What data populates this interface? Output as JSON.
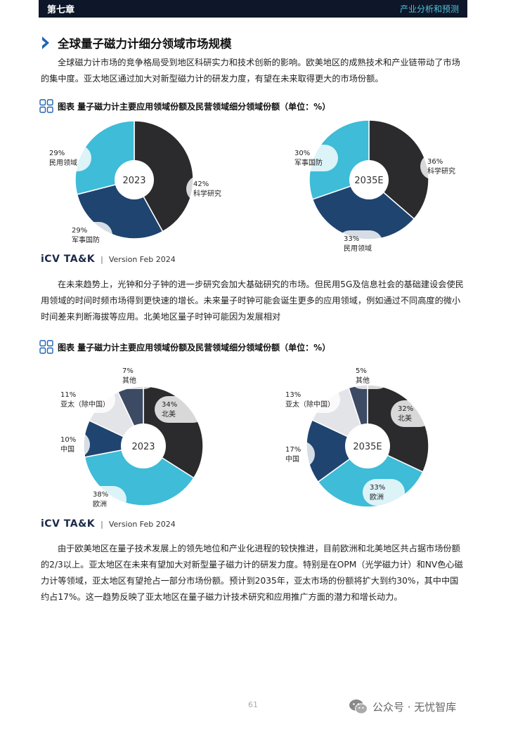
{
  "header": {
    "chapter": "第七章",
    "section": "产业分析和预测"
  },
  "title": "全球量子磁力计细分领域市场规模",
  "paragraphs": {
    "p1": "全球磁力计市场的竞争格局受到地区科研实力和技术创新的影响。欧美地区的成熟技术和产业链带动了市场的集中度。亚太地区通过加大对新型磁力计的研发力度，有望在未来取得更大的市场份额。",
    "p2": "在未来趋势上，光钟和分子钟的进一步研究会加大基础研究的市场。但民用5G及信息社会的基础建设会使民用领域的时间时频市场得到更快速的增长。未来量子时钟可能会诞生更多的应用领域，例如通过不同高度的微小时间差来判断海拔等应用。北美地区量子时钟可能因为发展相对",
    "p3": "由于欧美地区在量子技术发展上的领先地位和产业化进程的较快推进，目前欧洲和北美地区共占据市场份额的2/3以上。亚太地区在未来有望加大对新型量子磁力计的研发力度。特别是在OPM（光学磁力计）和NV色心磁力计等领域，亚太地区有望抢占一部分市场份额。预计到2035年，亚太市场的份额将扩大到约30%，其中中国约占17%。这一趋势反映了亚太地区在量子磁力计技术研究和应用推广方面的潜力和增长动力。"
  },
  "figures": {
    "fig1_caption": "图表 量子磁力计主要应用领域份额及民营领域细分领域份额（单位：%）",
    "fig2_caption": "图表 量子磁力计主要应用领域份额及民营领域细分领域份额（单位：%）"
  },
  "brand": {
    "logo": "iCV TA&K",
    "separator": "|",
    "version": "Version Feb 2024"
  },
  "page_number": "61",
  "watermark": "公众号 · 无忧智库",
  "colors": {
    "black": "#2b2b2e",
    "cyan": "#3ebcd8",
    "navy": "#1f4470",
    "lightgray": "#e2e4e8",
    "slate": "#3c4a63",
    "header": "#0e1629"
  },
  "chart_data": [
    {
      "type": "pie",
      "center_label": "2023",
      "slices": [
        {
          "label": "科学研究",
          "pct_text": "42%",
          "value": 42,
          "color": "#2b2b2e"
        },
        {
          "label": "军事国防",
          "pct_text": "29%",
          "value": 29,
          "color": "#1f4470"
        },
        {
          "label": "民用领域",
          "pct_text": "29%",
          "value": 29,
          "color": "#3ebcd8"
        }
      ]
    },
    {
      "type": "pie",
      "center_label": "2035E",
      "slices": [
        {
          "label": "科学研究",
          "pct_text": "36%",
          "value": 36,
          "color": "#2b2b2e"
        },
        {
          "label": "民用领域",
          "pct_text": "33%",
          "value": 33,
          "color": "#1f4470"
        },
        {
          "label": "军事国防",
          "pct_text": "30%",
          "value": 30,
          "color": "#3ebcd8"
        }
      ]
    },
    {
      "type": "pie",
      "center_label": "2023",
      "slices": [
        {
          "label": "北美",
          "pct_text": "34%",
          "value": 34,
          "color": "#2b2b2e"
        },
        {
          "label": "欧洲",
          "pct_text": "38%",
          "value": 38,
          "color": "#3ebcd8"
        },
        {
          "label": "中国",
          "pct_text": "10%",
          "value": 10,
          "color": "#1f4470"
        },
        {
          "label": "亚太（除中国）",
          "pct_text": "11%",
          "value": 11,
          "color": "#e2e4e8"
        },
        {
          "label": "其他",
          "pct_text": "7%",
          "value": 7,
          "color": "#3c4a63"
        }
      ]
    },
    {
      "type": "pie",
      "center_label": "2035E",
      "slices": [
        {
          "label": "北美",
          "pct_text": "32%",
          "value": 32,
          "color": "#2b2b2e"
        },
        {
          "label": "欧洲",
          "pct_text": "33%",
          "value": 33,
          "color": "#3ebcd8"
        },
        {
          "label": "中国",
          "pct_text": "17%",
          "value": 17,
          "color": "#1f4470"
        },
        {
          "label": "亚太（除中国）",
          "pct_text": "13%",
          "value": 13,
          "color": "#e2e4e8"
        },
        {
          "label": "其他",
          "pct_text": "5%",
          "value": 5,
          "color": "#3c4a63"
        }
      ]
    }
  ]
}
